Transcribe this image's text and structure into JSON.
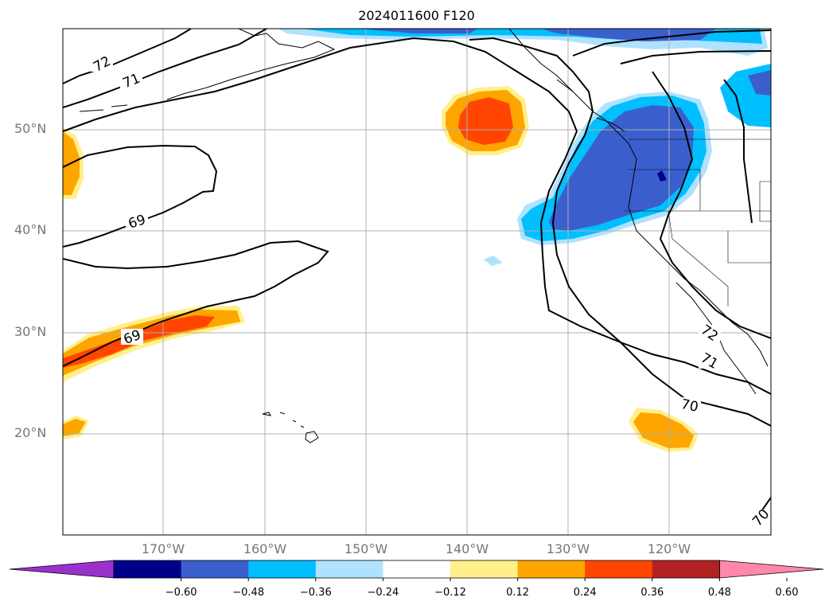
{
  "title": "2024011600 F120",
  "map": {
    "lat_labels": [
      "50°N",
      "40°N",
      "30°N",
      "20°N"
    ],
    "lon_labels": [
      "170°W",
      "160°W",
      "150°W",
      "140°W",
      "130°W",
      "120°W"
    ],
    "contour_labels": [
      "72",
      "71",
      "69",
      "69",
      "72",
      "71",
      "70",
      "70"
    ]
  },
  "colorbar": {
    "ticks": [
      "−0.60",
      "−0.48",
      "−0.36",
      "−0.24",
      "−0.12",
      "0.12",
      "0.24",
      "0.36",
      "0.48",
      "0.60"
    ],
    "colors": [
      "#9932cc",
      "#00008b",
      "#3a5fcd",
      "#00bfff",
      "#b0e2ff",
      "#ffffff",
      "#fff08c",
      "#ffa500",
      "#ff4500",
      "#b22222",
      "#ff88aa"
    ]
  }
}
